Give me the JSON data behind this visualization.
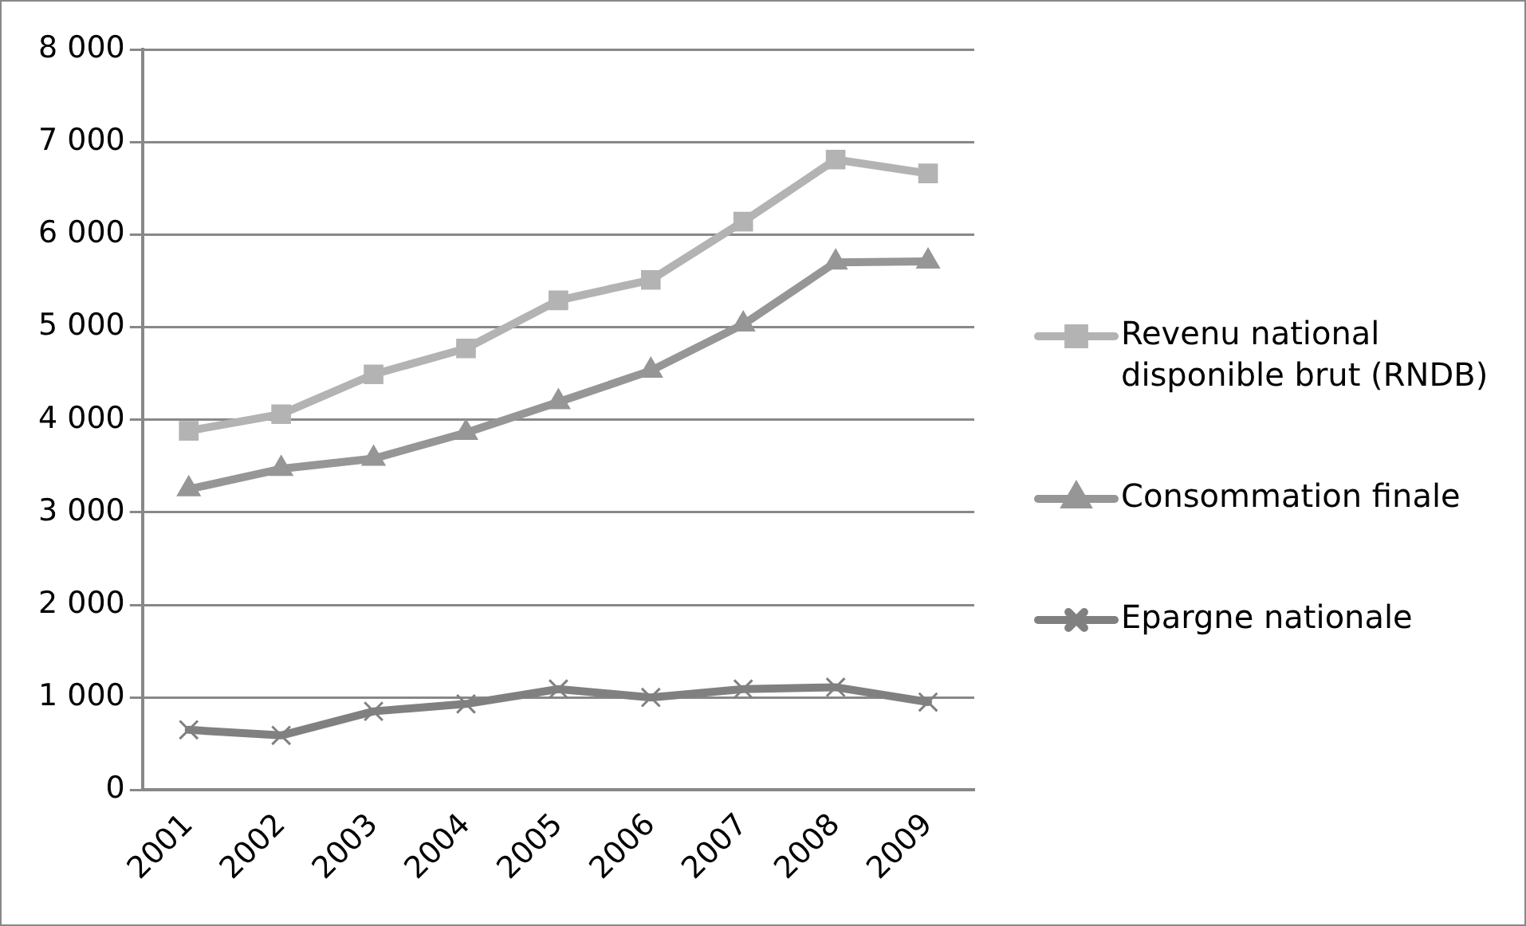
{
  "chart_data": {
    "type": "line",
    "categories": [
      "2001",
      "2002",
      "2003",
      "2004",
      "2005",
      "2006",
      "2007",
      "2008",
      "2009"
    ],
    "series": [
      {
        "name": "Revenu national disponible brut (RNDB)",
        "color": "#b3b3b3",
        "marker": "square",
        "values": [
          3880,
          4060,
          4490,
          4770,
          5290,
          5510,
          6140,
          6810,
          6660
        ]
      },
      {
        "name": "Consommation finale",
        "color": "#969696",
        "marker": "triangle",
        "values": [
          3250,
          3470,
          3580,
          3860,
          4190,
          4530,
          5030,
          5700,
          5710
        ]
      },
      {
        "name": "Epargne nationale",
        "color": "#808080",
        "marker": "cross",
        "values": [
          650,
          590,
          850,
          930,
          1090,
          1000,
          1090,
          1110,
          950
        ]
      }
    ],
    "ylim": [
      0,
      8000
    ],
    "yticks": [
      0,
      {
        "value": 1000,
        "label": "1 000"
      },
      {
        "value": 2000,
        "label": "2 000"
      },
      {
        "value": 3000,
        "label": "3 000"
      },
      {
        "value": 4000,
        "label": "4 000"
      },
      {
        "value": 5000,
        "label": "5 000"
      },
      {
        "value": 6000,
        "label": "6 000"
      },
      {
        "value": 7000,
        "label": "7 000"
      },
      {
        "value": 8000,
        "label": "8 000"
      }
    ],
    "grid": "y",
    "legend": "right",
    "line_style": "solid"
  }
}
